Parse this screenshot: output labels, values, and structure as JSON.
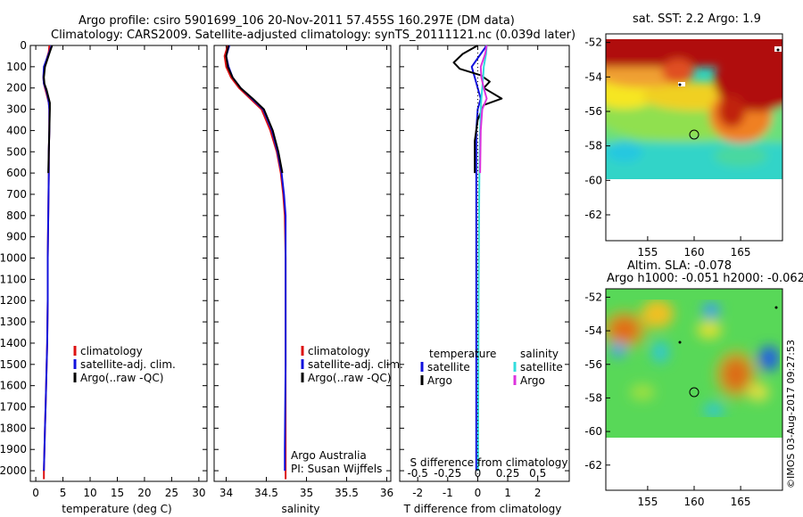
{
  "title_line1": "Argo profile: csiro 5901699_106 20-Nov-2011 57.455S 160.297E (DM data)",
  "title_line2": "Climatology: CARS2009. Satellite-adjusted climatology: synTS_20111121.nc (0.039d later)",
  "stamp": "©IMOS 03-Aug-2017 09:27:53",
  "colors": {
    "climatology": "#dd1111",
    "satellite": "#1111dd",
    "argo": "#000000",
    "salinity_satellite": "#33dddd",
    "salinity_argo": "#dd33dd"
  },
  "chart_data": [
    {
      "type": "line",
      "name": "temperature-profile",
      "xlabel": "temperature (deg C)",
      "ylabel": "",
      "xlim": [
        -1,
        31.5
      ],
      "ylim": [
        2050,
        0
      ],
      "xticks": [
        0,
        5,
        10,
        15,
        20,
        25,
        30
      ],
      "yticks": [
        0,
        100,
        200,
        300,
        400,
        500,
        600,
        700,
        800,
        900,
        1000,
        1100,
        1200,
        1300,
        1400,
        1500,
        1600,
        1700,
        1800,
        1900,
        2000
      ],
      "legend": [
        "climatology",
        "satellite-adj. clim.",
        "Argo(..raw -QC)"
      ],
      "series": [
        {
          "name": "climatology",
          "color": "#dd1111",
          "x": [
            2.5,
            2.4,
            1.6,
            1.4,
            1.5,
            1.7,
            2.0,
            2.4,
            2.5,
            2.5,
            2.4,
            2.4,
            2.3,
            2.2,
            2.2,
            2.1,
            2.0,
            1.9,
            1.8,
            1.7,
            1.6,
            1.5,
            1.5
          ],
          "y": [
            0,
            30,
            100,
            150,
            180,
            200,
            230,
            270,
            300,
            400,
            500,
            600,
            800,
            1000,
            1200,
            1400,
            1500,
            1600,
            1700,
            1800,
            1900,
            2000,
            2040
          ]
        },
        {
          "name": "satellite-adj. clim.",
          "color": "#1111dd",
          "x": [
            2.9,
            2.5,
            1.5,
            1.4,
            1.5,
            1.9,
            2.2,
            2.4,
            2.5,
            2.5,
            2.4,
            2.4,
            2.3,
            2.2,
            2.2,
            2.1,
            2.0,
            1.9,
            1.8,
            1.7,
            1.6,
            1.5
          ],
          "y": [
            0,
            30,
            100,
            150,
            180,
            210,
            240,
            270,
            300,
            400,
            500,
            600,
            800,
            1000,
            1200,
            1400,
            1500,
            1600,
            1700,
            1800,
            1900,
            2000
          ]
        },
        {
          "name": "Argo(..raw -QC)",
          "color": "#000000",
          "x": [
            3.0,
            2.6,
            1.7,
            1.5,
            1.6,
            2.0,
            2.3,
            2.6,
            2.6,
            2.5,
            2.4,
            2.3
          ],
          "y": [
            0,
            30,
            100,
            150,
            180,
            210,
            240,
            270,
            300,
            400,
            500,
            600
          ]
        }
      ]
    },
    {
      "type": "line",
      "name": "salinity-profile",
      "xlabel": "salinity",
      "ylabel": "",
      "xlim": [
        33.85,
        36.05
      ],
      "ylim": [
        2050,
        0
      ],
      "xticks": [
        34,
        34.5,
        35,
        35.5,
        36
      ],
      "xticklabels": [
        "34",
        "34.5",
        "35",
        "35.5",
        "36"
      ],
      "legend": [
        "climatology",
        "satellite-adj. clim.",
        "Argo(..raw -QC)"
      ],
      "annotation": [
        "Argo Australia",
        "PI: Susan Wijffels"
      ],
      "series": [
        {
          "name": "climatology",
          "color": "#dd1111",
          "x": [
            34.02,
            33.98,
            34.0,
            34.06,
            34.16,
            34.3,
            34.44,
            34.55,
            34.63,
            34.68,
            34.71,
            34.73,
            34.74,
            34.74,
            34.74,
            34.74
          ],
          "y": [
            0,
            50,
            100,
            150,
            200,
            250,
            300,
            400,
            500,
            600,
            700,
            800,
            1000,
            1500,
            1900,
            2040
          ]
        },
        {
          "name": "satellite-adj. clim.",
          "color": "#1111dd",
          "x": [
            34.04,
            34.0,
            34.03,
            34.08,
            34.18,
            34.32,
            34.46,
            34.57,
            34.64,
            34.69,
            34.72,
            34.74,
            34.74,
            34.74,
            34.73,
            34.73
          ],
          "y": [
            0,
            50,
            100,
            150,
            200,
            250,
            300,
            400,
            500,
            600,
            700,
            800,
            1000,
            1500,
            1900,
            2000
          ]
        },
        {
          "name": "Argo(..raw -QC)",
          "color": "#000000",
          "x": [
            34.03,
            34.0,
            34.02,
            34.08,
            34.18,
            34.33,
            34.47,
            34.58,
            34.65,
            34.7
          ],
          "y": [
            0,
            50,
            100,
            150,
            200,
            250,
            300,
            400,
            500,
            600
          ]
        }
      ]
    },
    {
      "type": "line",
      "name": "difference-profile",
      "xlabel": "T difference from climatology",
      "xlabel_top": "S difference from climatology",
      "xlim": [
        -2.6,
        3.05
      ],
      "ylim": [
        2050,
        0
      ],
      "xticks": [
        -2,
        -1,
        0,
        1,
        2
      ],
      "xticklabels_s": [
        "-0.5",
        "-0.25",
        "0",
        "0.25",
        "0.5"
      ],
      "xticks_s": [
        -0.5,
        -0.25,
        0,
        0.25,
        0.5
      ],
      "legend_left_title": "temperature",
      "legend_right_title": "salinity",
      "legend": [
        "satellite",
        "Argo",
        "satellite",
        "Argo"
      ],
      "series": [
        {
          "name": "temperature satellite",
          "color": "#1111dd",
          "x": [
            0.3,
            0.1,
            -0.2,
            -0.1,
            0.0,
            0.1,
            0.0,
            -0.05,
            -0.05,
            -0.05,
            -0.05,
            -0.05,
            -0.05,
            -0.05,
            -0.05,
            -0.05
          ],
          "y": [
            0,
            40,
            100,
            150,
            200,
            250,
            300,
            400,
            600,
            800,
            1000,
            1200,
            1400,
            1600,
            1800,
            2000
          ]
        },
        {
          "name": "temperature Argo",
          "color": "#000000",
          "x": [
            0.0,
            -0.5,
            -0.8,
            -0.6,
            0.1,
            0.4,
            0.2,
            0.8,
            0.2,
            0.0,
            -0.1,
            -0.1
          ],
          "y": [
            0,
            40,
            80,
            110,
            140,
            170,
            200,
            250,
            280,
            350,
            450,
            600
          ]
        },
        {
          "name": "salinity satellite",
          "color": "#33dddd",
          "x": [
            0.3,
            0.28,
            0.2,
            0.18,
            0.15,
            0.12,
            0.1,
            0.08,
            0.06,
            0.05,
            0.04,
            0.03,
            0.02,
            0.01
          ],
          "y": [
            0,
            40,
            100,
            150,
            200,
            250,
            300,
            400,
            500,
            700,
            900,
            1200,
            1600,
            2000
          ]
        },
        {
          "name": "salinity Argo",
          "color": "#dd33dd",
          "x": [
            0.3,
            0.25,
            0.1,
            0.12,
            0.2,
            0.3,
            0.15,
            0.1,
            0.08
          ],
          "y": [
            0,
            40,
            100,
            150,
            200,
            250,
            300,
            400,
            600
          ]
        }
      ]
    },
    {
      "type": "heatmap",
      "name": "sst-map",
      "title": "sat. SST: 2.2 Argo: 1.9",
      "xlim": [
        150.5,
        169.5
      ],
      "ylim": [
        -63.5,
        -51.5
      ],
      "xticks": [
        155,
        160,
        165
      ],
      "yticks": [
        -52,
        -54,
        -56,
        -58,
        -60,
        -62
      ],
      "argo_position": {
        "lon": 160.297,
        "lat": -57.455
      }
    },
    {
      "type": "heatmap",
      "name": "sla-map",
      "title_line1": "Altim. SLA: -0.078",
      "title_line2": "Argo h1000: -0.051 h2000: -0.062",
      "xlim": [
        150.5,
        169.5
      ],
      "ylim": [
        -63.5,
        -51.5
      ],
      "xticks": [
        155,
        160,
        165
      ],
      "yticks": [
        -52,
        -54,
        -56,
        -58,
        -60,
        -62
      ],
      "argo_position": {
        "lon": 160.297,
        "lat": -57.455
      }
    }
  ]
}
